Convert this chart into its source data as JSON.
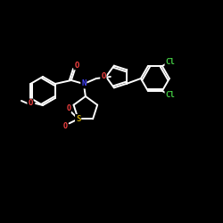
{
  "background_color": "#000000",
  "bond_color": "#ffffff",
  "atom_colors": {
    "O": "#ff4444",
    "N": "#4444ff",
    "S": "#ccaa00",
    "Cl": "#44cc44",
    "C": "#ffffff"
  },
  "figsize": [
    2.5,
    2.5
  ],
  "dpi": 100
}
